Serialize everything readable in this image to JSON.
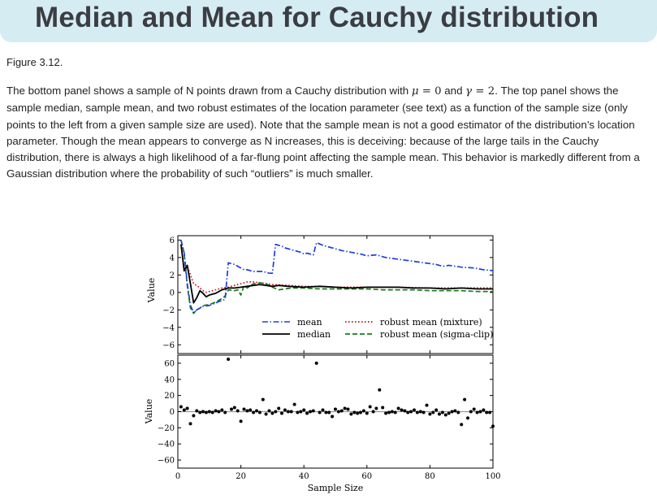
{
  "page": {
    "title": "Median and Mean for Cauchy distribution",
    "figure_label": "Figure 3.12.",
    "caption": {
      "p1": "The bottom panel shows a sample of N points drawn from a Cauchy distribution with ",
      "mu": "μ",
      "eq1": " = 0",
      "p2": " and ",
      "gamma": "γ",
      "eq2": " = 2",
      "p3": ". The top panel shows the sample median, sample mean, and two robust estimates of the location parameter (see text) as a function of the sample size (only points to the left from a given sample size are used). Note that the sample mean is not a good estimator of the distribution’s location parameter. Though the mean appears to converge as N increases, this is deceiving: because of the large tails in the Cauchy distribution, there is always a high likelihood of a far-flung point affecting the sample mean. This behavior is markedly different from a Gaussian distribution where the probability of such “outliers” is much smaller."
    }
  },
  "colors": {
    "mean": "#1f3fe0",
    "median": "#000000",
    "robust_mixture": "#cc1111",
    "robust_sigma_clip": "#1a7a1a"
  },
  "chart_data": [
    {
      "type": "line",
      "xlim": [
        0,
        100
      ],
      "ylim": [
        -7,
        6.5
      ],
      "yticks": [
        -6,
        -4,
        -2,
        0,
        2,
        4,
        6
      ],
      "ylabel": "Value",
      "xlabel": "",
      "legend": "lower-center, two columns",
      "series": [
        {
          "name": "mean",
          "style": "dashdot",
          "color": "#1f3fe0",
          "points": [
            [
              1,
              6
            ],
            [
              2,
              4.5
            ],
            [
              3,
              1
            ],
            [
              4,
              -1.5
            ],
            [
              5,
              -2.3
            ],
            [
              6,
              -2
            ],
            [
              7,
              -1.8
            ],
            [
              8,
              -1.6
            ],
            [
              10,
              -1.5
            ],
            [
              12,
              -1.2
            ],
            [
              14,
              -0.9
            ],
            [
              15,
              -0.8
            ],
            [
              16,
              3.4
            ],
            [
              18,
              3.2
            ],
            [
              19,
              3.0
            ],
            [
              20,
              2.8
            ],
            [
              21,
              2.6
            ],
            [
              22,
              2.6
            ],
            [
              23,
              2.5
            ],
            [
              24,
              2.4
            ],
            [
              25,
              2.4
            ],
            [
              26,
              2.4
            ],
            [
              27,
              2.4
            ],
            [
              28,
              2.3
            ],
            [
              29,
              2.2
            ],
            [
              30,
              2.2
            ],
            [
              31,
              5.5
            ],
            [
              33,
              5.3
            ],
            [
              34,
              5.1
            ],
            [
              36,
              4.9
            ],
            [
              38,
              4.7
            ],
            [
              39,
              4.6
            ],
            [
              40,
              4.4
            ],
            [
              41,
              4.5
            ],
            [
              43,
              4.3
            ],
            [
              44,
              5.7
            ],
            [
              46,
              5.4
            ],
            [
              48,
              5.2
            ],
            [
              50,
              5.0
            ],
            [
              52,
              4.8
            ],
            [
              55,
              4.6
            ],
            [
              58,
              4.4
            ],
            [
              60,
              4.2
            ],
            [
              63,
              4.3
            ],
            [
              66,
              4.0
            ],
            [
              70,
              3.8
            ],
            [
              74,
              3.6
            ],
            [
              78,
              3.4
            ],
            [
              82,
              3.2
            ],
            [
              84,
              3.0
            ],
            [
              86,
              3.1
            ],
            [
              90,
              2.9
            ],
            [
              94,
              2.8
            ],
            [
              97,
              2.6
            ],
            [
              100,
              2.5
            ]
          ]
        },
        {
          "name": "median",
          "style": "solid",
          "color": "#000000",
          "points": [
            [
              1,
              5.5
            ],
            [
              2,
              2.5
            ],
            [
              3,
              3.1
            ],
            [
              4,
              1.0
            ],
            [
              5,
              -1.2
            ],
            [
              6,
              -0.6
            ],
            [
              7,
              0.2
            ],
            [
              8,
              -0.1
            ],
            [
              9,
              -0.5
            ],
            [
              10,
              -0.3
            ],
            [
              12,
              -0.1
            ],
            [
              14,
              0.3
            ],
            [
              16,
              0.5
            ],
            [
              18,
              0.5
            ],
            [
              20,
              0.6
            ],
            [
              22,
              0.7
            ],
            [
              24,
              0.8
            ],
            [
              26,
              0.9
            ],
            [
              28,
              0.8
            ],
            [
              30,
              0.7
            ],
            [
              32,
              0.8
            ],
            [
              35,
              0.7
            ],
            [
              40,
              0.6
            ],
            [
              45,
              0.7
            ],
            [
              50,
              0.6
            ],
            [
              55,
              0.5
            ],
            [
              60,
              0.6
            ],
            [
              65,
              0.6
            ],
            [
              70,
              0.6
            ],
            [
              75,
              0.5
            ],
            [
              80,
              0.5
            ],
            [
              85,
              0.4
            ],
            [
              90,
              0.5
            ],
            [
              95,
              0.4
            ],
            [
              100,
              0.4
            ]
          ]
        },
        {
          "name": "robust mean (mixture)",
          "style": "dotted",
          "color": "#cc1111",
          "points": [
            [
              1,
              5.5
            ],
            [
              2,
              2.3
            ],
            [
              3,
              3.0
            ],
            [
              4,
              2.0
            ],
            [
              5,
              1.0
            ],
            [
              6,
              0.8
            ],
            [
              7,
              0.5
            ],
            [
              8,
              0.2
            ],
            [
              9,
              0
            ],
            [
              10,
              0.1
            ],
            [
              12,
              0.3
            ],
            [
              14,
              0.5
            ],
            [
              16,
              0.6
            ],
            [
              18,
              0.8
            ],
            [
              20,
              1.0
            ],
            [
              22,
              1.2
            ],
            [
              24,
              1.2
            ],
            [
              26,
              1.1
            ],
            [
              28,
              1.0
            ],
            [
              30,
              0.9
            ],
            [
              35,
              0.8
            ],
            [
              40,
              0.7
            ],
            [
              45,
              0.7
            ],
            [
              50,
              0.6
            ],
            [
              55,
              0.6
            ],
            [
              60,
              0.6
            ],
            [
              70,
              0.6
            ],
            [
              80,
              0.5
            ],
            [
              90,
              0.5
            ],
            [
              100,
              0.5
            ]
          ]
        },
        {
          "name": "robust mean (sigma-clip)",
          "style": "dashed",
          "color": "#1a7a1a",
          "points": [
            [
              1,
              6
            ],
            [
              2,
              4.5
            ],
            [
              3,
              0.8
            ],
            [
              4,
              -1.8
            ],
            [
              5,
              -2.4
            ],
            [
              6,
              -2.0
            ],
            [
              7,
              -1.8
            ],
            [
              8,
              -1.5
            ],
            [
              10,
              -1.4
            ],
            [
              12,
              -1.1
            ],
            [
              14,
              -0.7
            ],
            [
              15,
              -0.4
            ],
            [
              16,
              0.3
            ],
            [
              18,
              0.2
            ],
            [
              19,
              0.3
            ],
            [
              20,
              -0.3
            ],
            [
              21,
              0.8
            ],
            [
              22,
              0.5
            ],
            [
              24,
              1.0
            ],
            [
              26,
              1.1
            ],
            [
              28,
              1.0
            ],
            [
              30,
              0.6
            ],
            [
              32,
              0.3
            ],
            [
              34,
              0.4
            ],
            [
              36,
              0.5
            ],
            [
              40,
              0.5
            ],
            [
              45,
              0.4
            ],
            [
              50,
              0.4
            ],
            [
              55,
              0.4
            ],
            [
              60,
              0.4
            ],
            [
              65,
              0.3
            ],
            [
              70,
              0.3
            ],
            [
              75,
              0.3
            ],
            [
              80,
              0.2
            ],
            [
              85,
              0.2
            ],
            [
              90,
              0.2
            ],
            [
              95,
              0.1
            ],
            [
              100,
              0.1
            ]
          ]
        }
      ]
    },
    {
      "type": "scatter",
      "xlim": [
        0,
        100
      ],
      "ylim": [
        -70,
        70
      ],
      "yticks": [
        -60,
        -40,
        -20,
        0,
        20,
        40,
        60
      ],
      "xticks": [
        0,
        20,
        40,
        60,
        80,
        100
      ],
      "xlabel": "Sample Size",
      "ylabel": "Value",
      "hline": 0,
      "x": [
        1,
        2,
        3,
        4,
        5,
        6,
        7,
        8,
        9,
        10,
        11,
        12,
        13,
        14,
        15,
        16,
        17,
        18,
        19,
        20,
        21,
        22,
        23,
        24,
        25,
        26,
        27,
        28,
        29,
        30,
        31,
        32,
        33,
        34,
        35,
        36,
        37,
        38,
        39,
        40,
        41,
        42,
        43,
        44,
        45,
        46,
        47,
        48,
        49,
        50,
        51,
        52,
        53,
        54,
        55,
        56,
        57,
        58,
        59,
        60,
        61,
        62,
        63,
        64,
        65,
        66,
        67,
        68,
        69,
        70,
        71,
        72,
        73,
        74,
        75,
        76,
        77,
        78,
        79,
        80,
        81,
        82,
        83,
        84,
        85,
        86,
        87,
        88,
        89,
        90,
        91,
        92,
        93,
        94,
        95,
        96,
        97,
        98,
        99,
        100
      ],
      "y": [
        6,
        2,
        4,
        -15,
        -5,
        1,
        -1,
        0,
        -1,
        0,
        -1,
        1,
        0,
        2,
        -1,
        65,
        3,
        5,
        1,
        -12,
        3,
        1,
        2,
        -1,
        1,
        -1,
        15,
        -3,
        1,
        -2,
        0,
        4,
        -2,
        2,
        0,
        0,
        9,
        -1,
        0,
        2,
        -2,
        0,
        1,
        60,
        -1,
        2,
        -1,
        -1,
        -6,
        3,
        0,
        1,
        4,
        3,
        -3,
        -1,
        -2,
        -1,
        1,
        -2,
        6,
        0,
        4,
        27,
        5,
        -2,
        -1,
        0,
        -1,
        4,
        2,
        1,
        -1,
        0,
        2,
        -1,
        0,
        -1,
        8,
        -3,
        -1,
        2,
        -3,
        -1,
        -4,
        -2,
        0,
        1,
        -1,
        -16,
        15,
        -8,
        0,
        3,
        -1,
        0,
        2,
        -1,
        -1,
        -18
      ]
    }
  ]
}
